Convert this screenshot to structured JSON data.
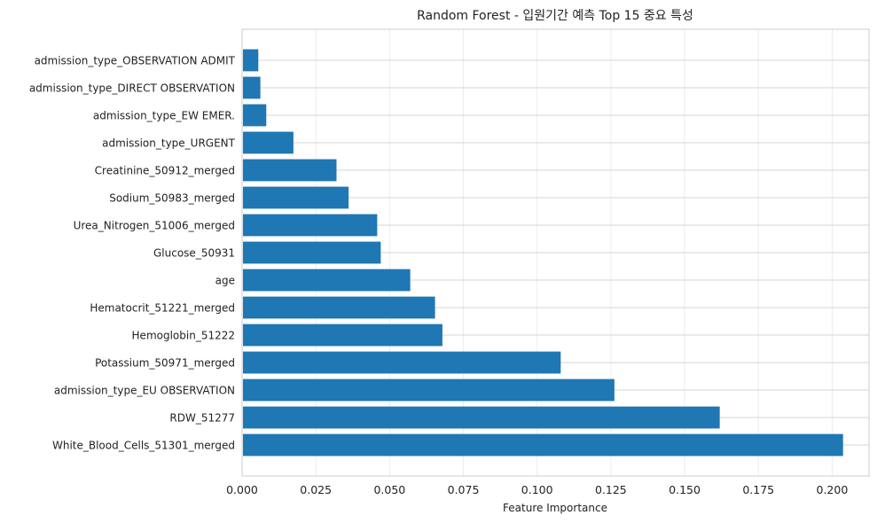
{
  "chart_data": {
    "type": "bar",
    "orientation": "horizontal",
    "title": "Random Forest - 입원기간 예측 Top 15 중요 특성",
    "xlabel": "Feature Importance",
    "ylabel": "",
    "xlim": [
      0,
      0.2125
    ],
    "xticks": [
      0,
      0.025,
      0.05,
      0.075,
      0.1,
      0.125,
      0.15,
      0.175,
      0.2
    ],
    "xtick_labels": [
      "0.000",
      "0.025",
      "0.050",
      "0.075",
      "0.100",
      "0.125",
      "0.150",
      "0.175",
      "0.200"
    ],
    "grid": true,
    "bar_color": "#1f77b4",
    "categories": [
      "admission_type_OBSERVATION ADMIT",
      "admission_type_DIRECT OBSERVATION",
      "admission_type_EW EMER.",
      "admission_type_URGENT",
      "Creatinine_50912_merged",
      "Sodium_50983_merged",
      "Urea_Nitrogen_51006_merged",
      "Glucose_50931",
      "age",
      "Hematocrit_51221_merged",
      "Hemoglobin_51222",
      "Potassium_50971_merged",
      "admission_type_EU OBSERVATION",
      "RDW_51277",
      "White_Blood_Cells_51301_merged"
    ],
    "values": [
      0.0055,
      0.0062,
      0.0082,
      0.0174,
      0.032,
      0.0361,
      0.0458,
      0.047,
      0.057,
      0.0654,
      0.0679,
      0.108,
      0.1262,
      0.1619,
      0.2037
    ]
  }
}
